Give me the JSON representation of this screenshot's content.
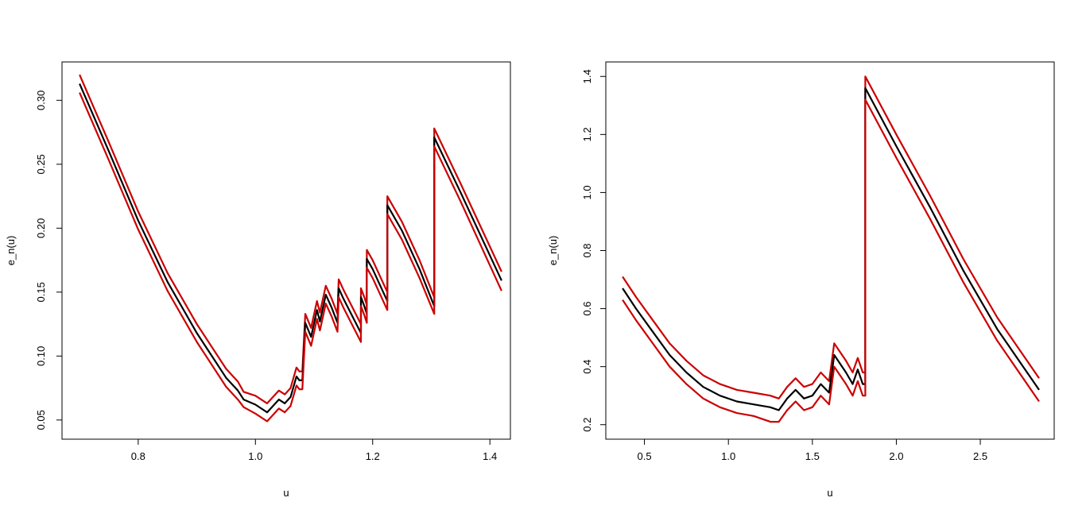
{
  "chart_data": [
    {
      "type": "line",
      "title": "",
      "xlabel": "u",
      "ylabel": "e_n(u)",
      "xlim": [
        0.67,
        1.435
      ],
      "ylim": [
        0.035,
        0.33
      ],
      "x_ticks": [
        0.8,
        1.0,
        1.2,
        1.4
      ],
      "x_tick_labels": [
        "0.8",
        "1.0",
        "1.2",
        "1.4"
      ],
      "y_ticks": [
        0.05,
        0.1,
        0.15,
        0.2,
        0.25,
        0.3
      ],
      "y_tick_labels": [
        "0.05",
        "0.10",
        "0.15",
        "0.20",
        "0.25",
        "0.30"
      ],
      "grid": false,
      "series": [
        {
          "color": "#cc0000",
          "points": [
            [
              0.7,
              0.32
            ],
            [
              0.75,
              0.267
            ],
            [
              0.8,
              0.213
            ],
            [
              0.85,
              0.165
            ],
            [
              0.9,
              0.125
            ],
            [
              0.95,
              0.09
            ],
            [
              0.97,
              0.08
            ],
            [
              0.98,
              0.072
            ],
            [
              1.0,
              0.069
            ],
            [
              1.02,
              0.063
            ],
            [
              1.04,
              0.073
            ],
            [
              1.05,
              0.07
            ],
            [
              1.06,
              0.075
            ],
            [
              1.07,
              0.091
            ],
            [
              1.075,
              0.088
            ],
            [
              1.08,
              0.088
            ],
            [
              1.085,
              0.133
            ],
            [
              1.095,
              0.122
            ],
            [
              1.105,
              0.143
            ],
            [
              1.11,
              0.134
            ],
            [
              1.12,
              0.155
            ],
            [
              1.13,
              0.145
            ],
            [
              1.14,
              0.133
            ],
            [
              1.142,
              0.16
            ],
            [
              1.15,
              0.152
            ],
            [
              1.17,
              0.134
            ],
            [
              1.18,
              0.125
            ],
            [
              1.18,
              0.153
            ],
            [
              1.185,
              0.147
            ],
            [
              1.19,
              0.14
            ],
            [
              1.19,
              0.183
            ],
            [
              1.2,
              0.175
            ],
            [
              1.22,
              0.155
            ],
            [
              1.225,
              0.15
            ],
            [
              1.225,
              0.225
            ],
            [
              1.25,
              0.205
            ],
            [
              1.28,
              0.175
            ],
            [
              1.305,
              0.146
            ],
            [
              1.305,
              0.278
            ],
            [
              1.35,
              0.235
            ],
            [
              1.42,
              0.166
            ]
          ]
        },
        {
          "color": "#000000",
          "points": [
            [
              0.7,
              0.313
            ],
            [
              0.75,
              0.26
            ],
            [
              0.8,
              0.206
            ],
            [
              0.85,
              0.158
            ],
            [
              0.9,
              0.118
            ],
            [
              0.95,
              0.083
            ],
            [
              0.97,
              0.073
            ],
            [
              0.98,
              0.066
            ],
            [
              1.0,
              0.062
            ],
            [
              1.02,
              0.056
            ],
            [
              1.04,
              0.066
            ],
            [
              1.05,
              0.063
            ],
            [
              1.06,
              0.068
            ],
            [
              1.07,
              0.084
            ],
            [
              1.075,
              0.081
            ],
            [
              1.08,
              0.081
            ],
            [
              1.085,
              0.126
            ],
            [
              1.095,
              0.115
            ],
            [
              1.105,
              0.136
            ],
            [
              1.11,
              0.127
            ],
            [
              1.12,
              0.148
            ],
            [
              1.13,
              0.138
            ],
            [
              1.14,
              0.126
            ],
            [
              1.142,
              0.153
            ],
            [
              1.15,
              0.145
            ],
            [
              1.17,
              0.127
            ],
            [
              1.18,
              0.118
            ],
            [
              1.18,
              0.146
            ],
            [
              1.185,
              0.14
            ],
            [
              1.19,
              0.133
            ],
            [
              1.19,
              0.176
            ],
            [
              1.2,
              0.168
            ],
            [
              1.22,
              0.148
            ],
            [
              1.225,
              0.143
            ],
            [
              1.225,
              0.218
            ],
            [
              1.25,
              0.198
            ],
            [
              1.28,
              0.168
            ],
            [
              1.305,
              0.139
            ],
            [
              1.305,
              0.271
            ],
            [
              1.35,
              0.228
            ],
            [
              1.42,
              0.159
            ]
          ]
        },
        {
          "color": "#cc0000",
          "points": [
            [
              0.7,
              0.306
            ],
            [
              0.75,
              0.253
            ],
            [
              0.8,
              0.199
            ],
            [
              0.85,
              0.151
            ],
            [
              0.9,
              0.111
            ],
            [
              0.95,
              0.076
            ],
            [
              0.97,
              0.066
            ],
            [
              0.98,
              0.06
            ],
            [
              1.0,
              0.055
            ],
            [
              1.02,
              0.049
            ],
            [
              1.04,
              0.059
            ],
            [
              1.05,
              0.056
            ],
            [
              1.06,
              0.061
            ],
            [
              1.07,
              0.077
            ],
            [
              1.075,
              0.074
            ],
            [
              1.08,
              0.074
            ],
            [
              1.085,
              0.119
            ],
            [
              1.095,
              0.108
            ],
            [
              1.105,
              0.129
            ],
            [
              1.11,
              0.12
            ],
            [
              1.12,
              0.141
            ],
            [
              1.13,
              0.131
            ],
            [
              1.14,
              0.119
            ],
            [
              1.142,
              0.146
            ],
            [
              1.15,
              0.138
            ],
            [
              1.17,
              0.12
            ],
            [
              1.18,
              0.111
            ],
            [
              1.18,
              0.139
            ],
            [
              1.185,
              0.133
            ],
            [
              1.19,
              0.126
            ],
            [
              1.19,
              0.169
            ],
            [
              1.2,
              0.161
            ],
            [
              1.22,
              0.141
            ],
            [
              1.225,
              0.136
            ],
            [
              1.225,
              0.211
            ],
            [
              1.25,
              0.191
            ],
            [
              1.28,
              0.161
            ],
            [
              1.305,
              0.133
            ],
            [
              1.305,
              0.264
            ],
            [
              1.35,
              0.221
            ],
            [
              1.42,
              0.151
            ]
          ]
        }
      ]
    },
    {
      "type": "line",
      "title": "",
      "xlabel": "u",
      "ylabel": "e_n(u)",
      "xlim": [
        0.27,
        2.94
      ],
      "ylim": [
        0.15,
        1.45
      ],
      "x_ticks": [
        0.5,
        1.0,
        1.5,
        2.0,
        2.5
      ],
      "x_tick_labels": [
        "0.5",
        "1.0",
        "1.5",
        "2.0",
        "2.5"
      ],
      "y_ticks": [
        0.2,
        0.4,
        0.6,
        0.8,
        1.0,
        1.2,
        1.4
      ],
      "y_tick_labels": [
        "0.2",
        "0.4",
        "0.6",
        "0.8",
        "1.0",
        "1.2",
        "1.4"
      ],
      "grid": false,
      "series": [
        {
          "color": "#cc0000",
          "points": [
            [
              0.37,
              0.71
            ],
            [
              0.45,
              0.64
            ],
            [
              0.55,
              0.56
            ],
            [
              0.65,
              0.48
            ],
            [
              0.75,
              0.42
            ],
            [
              0.85,
              0.37
            ],
            [
              0.95,
              0.34
            ],
            [
              1.05,
              0.32
            ],
            [
              1.15,
              0.31
            ],
            [
              1.25,
              0.3
            ],
            [
              1.3,
              0.29
            ],
            [
              1.35,
              0.33
            ],
            [
              1.4,
              0.36
            ],
            [
              1.45,
              0.33
            ],
            [
              1.5,
              0.34
            ],
            [
              1.55,
              0.38
            ],
            [
              1.6,
              0.35
            ],
            [
              1.63,
              0.48
            ],
            [
              1.7,
              0.42
            ],
            [
              1.74,
              0.38
            ],
            [
              1.77,
              0.43
            ],
            [
              1.8,
              0.38
            ],
            [
              1.815,
              0.38
            ],
            [
              1.815,
              1.4
            ],
            [
              2.0,
              1.2
            ],
            [
              2.2,
              0.99
            ],
            [
              2.4,
              0.77
            ],
            [
              2.6,
              0.57
            ],
            [
              2.85,
              0.36
            ]
          ]
        },
        {
          "color": "#000000",
          "points": [
            [
              0.37,
              0.67
            ],
            [
              0.45,
              0.6
            ],
            [
              0.55,
              0.52
            ],
            [
              0.65,
              0.44
            ],
            [
              0.75,
              0.38
            ],
            [
              0.85,
              0.33
            ],
            [
              0.95,
              0.3
            ],
            [
              1.05,
              0.28
            ],
            [
              1.15,
              0.27
            ],
            [
              1.25,
              0.26
            ],
            [
              1.3,
              0.25
            ],
            [
              1.35,
              0.29
            ],
            [
              1.4,
              0.32
            ],
            [
              1.45,
              0.29
            ],
            [
              1.5,
              0.3
            ],
            [
              1.55,
              0.34
            ],
            [
              1.6,
              0.31
            ],
            [
              1.63,
              0.44
            ],
            [
              1.7,
              0.38
            ],
            [
              1.74,
              0.34
            ],
            [
              1.77,
              0.39
            ],
            [
              1.8,
              0.34
            ],
            [
              1.815,
              0.34
            ],
            [
              1.815,
              1.36
            ],
            [
              2.0,
              1.16
            ],
            [
              2.2,
              0.95
            ],
            [
              2.4,
              0.73
            ],
            [
              2.6,
              0.53
            ],
            [
              2.85,
              0.32
            ]
          ]
        },
        {
          "color": "#cc0000",
          "points": [
            [
              0.37,
              0.63
            ],
            [
              0.45,
              0.56
            ],
            [
              0.55,
              0.48
            ],
            [
              0.65,
              0.4
            ],
            [
              0.75,
              0.34
            ],
            [
              0.85,
              0.29
            ],
            [
              0.95,
              0.26
            ],
            [
              1.05,
              0.24
            ],
            [
              1.15,
              0.23
            ],
            [
              1.25,
              0.21
            ],
            [
              1.3,
              0.21
            ],
            [
              1.35,
              0.25
            ],
            [
              1.4,
              0.28
            ],
            [
              1.45,
              0.25
            ],
            [
              1.5,
              0.26
            ],
            [
              1.55,
              0.3
            ],
            [
              1.6,
              0.27
            ],
            [
              1.63,
              0.4
            ],
            [
              1.7,
              0.34
            ],
            [
              1.74,
              0.3
            ],
            [
              1.77,
              0.35
            ],
            [
              1.8,
              0.3
            ],
            [
              1.815,
              0.3
            ],
            [
              1.815,
              1.32
            ],
            [
              2.0,
              1.12
            ],
            [
              2.2,
              0.91
            ],
            [
              2.4,
              0.69
            ],
            [
              2.6,
              0.49
            ],
            [
              2.85,
              0.28
            ]
          ]
        }
      ]
    }
  ]
}
